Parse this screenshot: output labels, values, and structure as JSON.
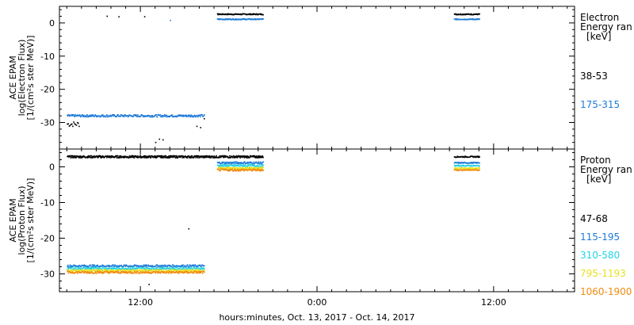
{
  "chart_data": [
    {
      "type": "scatter",
      "ylabel_lines": [
        "ACE EPAM",
        "log(Electron Flux)",
        "[1/(cm²s ster MeV)]"
      ],
      "ylim": [
        -38,
        5
      ],
      "yticks": [
        0,
        -10,
        -20,
        -30
      ],
      "legend": {
        "title_lines": [
          "Electron",
          "Energy ran",
          "[keV]"
        ],
        "entries": [
          {
            "label": "38-53",
            "color": "#000000"
          },
          {
            "label": "175-315",
            "color": "#1e7bd8"
          }
        ]
      },
      "series": [
        {
          "key": "e_38_53",
          "color": "#000000",
          "segments": [
            {
              "x": [
                7.0,
                7.8
              ],
              "y": -30.3,
              "jitter": 0.8,
              "density": 18
            },
            {
              "x": [
                9.7,
                10.5
              ],
              "y": 2.2,
              "jitter": 0.3,
              "density": 3
            },
            {
              "x": [
                12.0,
                12.5
              ],
              "y": 2.0,
              "jitter": 0.2,
              "density": 2
            },
            {
              "x": [
                13.0,
                13.5
              ],
              "y": -35.0,
              "jitter": 1.2,
              "density": 6
            },
            {
              "x": [
                15.8,
                16.3
              ],
              "y": -30.0,
              "jitter": 1.5,
              "density": 6
            },
            {
              "x": [
                17.2,
                20.3
              ],
              "y": 2.8,
              "jitter": 0.15,
              "density": 30
            },
            {
              "x": [
                33.3,
                35.0
              ],
              "y": 2.8,
              "jitter": 0.15,
              "density": 30
            }
          ]
        },
        {
          "key": "e_175_315",
          "color": "#1e7bd8",
          "segments": [
            {
              "x": [
                7.0,
                16.3
              ],
              "y": -27.8,
              "jitter": 0.35,
              "density": 28
            },
            {
              "x": [
                13.8,
                14.2
              ],
              "y": 0.8,
              "jitter": 0.4,
              "density": 3
            },
            {
              "x": [
                17.2,
                20.3
              ],
              "y": 1.3,
              "jitter": 0.15,
              "density": 30
            },
            {
              "x": [
                33.3,
                35.0
              ],
              "y": 1.3,
              "jitter": 0.15,
              "density": 30
            }
          ]
        }
      ]
    },
    {
      "type": "scatter",
      "ylabel_lines": [
        "ACE EPAM",
        "log(Proton Flux)",
        "[1/(cm²s ster MeV)]"
      ],
      "ylim": [
        -35,
        5
      ],
      "yticks": [
        0,
        -10,
        -20,
        -30
      ],
      "legend": {
        "title_lines": [
          "Proton",
          "Energy ran",
          "[keV]"
        ],
        "entries": [
          {
            "label": "47-68",
            "color": "#000000"
          },
          {
            "label": "115-195",
            "color": "#1e7bd8"
          },
          {
            "label": "310-580",
            "color": "#22d3e6"
          },
          {
            "label": "795-1193",
            "color": "#e8e020"
          },
          {
            "label": "1060-1900",
            "color": "#f08a10"
          }
        ]
      },
      "series": [
        {
          "key": "p_47_68",
          "color": "#000000",
          "segments": [
            {
              "x": [
                7.0,
                20.3
              ],
              "y": 3.0,
              "jitter": 0.3,
              "density": 40
            },
            {
              "x": [
                15.2,
                15.3
              ],
              "y": -17.0,
              "jitter": 0.3,
              "density": 1
            },
            {
              "x": [
                12.5,
                12.6
              ],
              "y": -33.0,
              "jitter": 0.3,
              "density": 1
            },
            {
              "x": [
                33.3,
                35.0
              ],
              "y": 3.0,
              "jitter": 0.15,
              "density": 30
            }
          ]
        },
        {
          "key": "p_115_195",
          "color": "#1e7bd8",
          "segments": [
            {
              "x": [
                7.0,
                16.3
              ],
              "y": -27.6,
              "jitter": 0.3,
              "density": 28
            },
            {
              "x": [
                17.2,
                20.3
              ],
              "y": 1.3,
              "jitter": 0.3,
              "density": 30
            },
            {
              "x": [
                33.3,
                35.0
              ],
              "y": 1.3,
              "jitter": 0.15,
              "density": 30
            }
          ]
        },
        {
          "key": "p_310_580",
          "color": "#22d3e6",
          "segments": [
            {
              "x": [
                7.0,
                16.3
              ],
              "y": -28.3,
              "jitter": 0.3,
              "density": 28
            },
            {
              "x": [
                17.2,
                20.3
              ],
              "y": 0.5,
              "jitter": 0.3,
              "density": 30
            },
            {
              "x": [
                33.3,
                35.0
              ],
              "y": 0.5,
              "jitter": 0.15,
              "density": 30
            }
          ]
        },
        {
          "key": "p_795_1193",
          "color": "#e8e020",
          "segments": [
            {
              "x": [
                7.0,
                16.3
              ],
              "y": -28.9,
              "jitter": 0.3,
              "density": 28
            },
            {
              "x": [
                17.2,
                20.3
              ],
              "y": -0.2,
              "jitter": 0.3,
              "density": 30
            },
            {
              "x": [
                33.3,
                35.0
              ],
              "y": -0.2,
              "jitter": 0.15,
              "density": 30
            }
          ]
        },
        {
          "key": "p_1060_1900",
          "color": "#f08a10",
          "segments": [
            {
              "x": [
                7.0,
                16.3
              ],
              "y": -29.4,
              "jitter": 0.3,
              "density": 28
            },
            {
              "x": [
                17.2,
                20.3
              ],
              "y": -0.7,
              "jitter": 0.3,
              "density": 30
            },
            {
              "x": [
                33.3,
                35.0
              ],
              "y": -0.7,
              "jitter": 0.15,
              "density": 30
            }
          ]
        }
      ]
    }
  ],
  "x_axis": {
    "label": "hours:minutes, Oct. 13, 2017 - Oct. 14, 2017",
    "xlim": [
      6.5,
      41.5
    ],
    "ticks": [
      {
        "x": 12,
        "label": "12:00"
      },
      {
        "x": 24,
        "label": "0:00"
      },
      {
        "x": 36,
        "label": "12:00"
      }
    ],
    "minor_step": 1
  }
}
